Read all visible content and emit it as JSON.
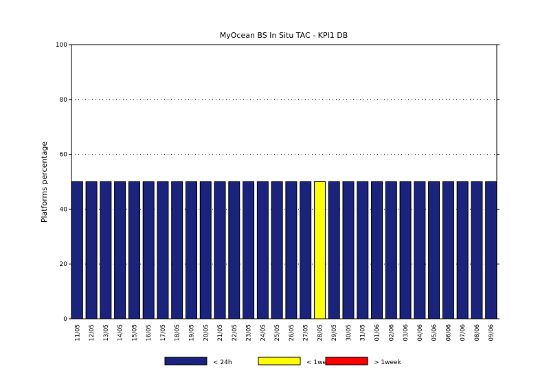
{
  "chart_data": {
    "type": "bar",
    "title": "MyOcean  BS In Situ TAC - KPI1  DB",
    "ylabel": "Platforms percentage",
    "xlabel": "",
    "ylim": [
      0,
      100
    ],
    "yticks": [
      0,
      20,
      40,
      60,
      80,
      100
    ],
    "grid": "horizontal-dotted",
    "legend_position": "bottom",
    "categories": [
      "11/05",
      "12/05",
      "13/05",
      "14/05",
      "15/05",
      "16/05",
      "17/05",
      "18/05",
      "19/05",
      "20/05",
      "21/05",
      "22/05",
      "23/05",
      "24/05",
      "25/05",
      "26/05",
      "27/05",
      "28/05",
      "29/05",
      "30/05",
      "31/05",
      "01/06",
      "02/06",
      "03/06",
      "04/06",
      "05/06",
      "06/06",
      "07/06",
      "08/06",
      "09/06"
    ],
    "series": [
      {
        "name": "< 24h",
        "color": "#1a237e",
        "values": [
          50,
          50,
          50,
          50,
          50,
          50,
          50,
          50,
          50,
          50,
          50,
          50,
          50,
          50,
          50,
          50,
          50,
          0,
          50,
          50,
          50,
          50,
          50,
          50,
          50,
          50,
          50,
          50,
          50,
          50
        ]
      },
      {
        "name": "< 1week",
        "color": "#ffff00",
        "values": [
          0,
          0,
          0,
          0,
          0,
          0,
          0,
          0,
          0,
          0,
          0,
          0,
          0,
          0,
          0,
          0,
          0,
          50,
          0,
          0,
          0,
          0,
          0,
          0,
          0,
          0,
          0,
          0,
          0,
          0
        ]
      },
      {
        "name": "> 1week",
        "color": "#ff0000",
        "values": [
          0,
          0,
          0,
          0,
          0,
          0,
          0,
          0,
          0,
          0,
          0,
          0,
          0,
          0,
          0,
          0,
          0,
          0,
          0,
          0,
          0,
          0,
          0,
          0,
          0,
          0,
          0,
          0,
          0,
          0
        ]
      }
    ]
  }
}
